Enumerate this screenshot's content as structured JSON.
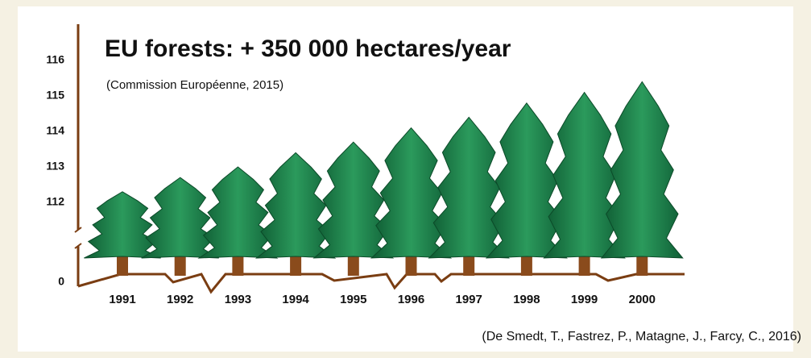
{
  "chart_data": {
    "type": "tree-pictogram",
    "title": "EU forests: + 350 000 hectares/year",
    "subtitle": "(Commission Européenne, 2015)",
    "source": "(De Smedt, T., Fastrez, P., Matagne, J., Farcy, C., 2016)",
    "categories": [
      "1991",
      "1992",
      "1993",
      "1994",
      "1995",
      "1996",
      "1997",
      "1998",
      "1999",
      "2000"
    ],
    "values": [
      112.3,
      112.7,
      113.0,
      113.4,
      113.7,
      114.1,
      114.4,
      114.8,
      115.1,
      115.4
    ],
    "ylim": [
      0,
      116.5
    ],
    "axis_break": [
      0,
      111
    ],
    "yticks": [
      0,
      112,
      113,
      114,
      115,
      116
    ],
    "color": "#1f7a4a",
    "trunk_color": "#8a4b1c"
  }
}
